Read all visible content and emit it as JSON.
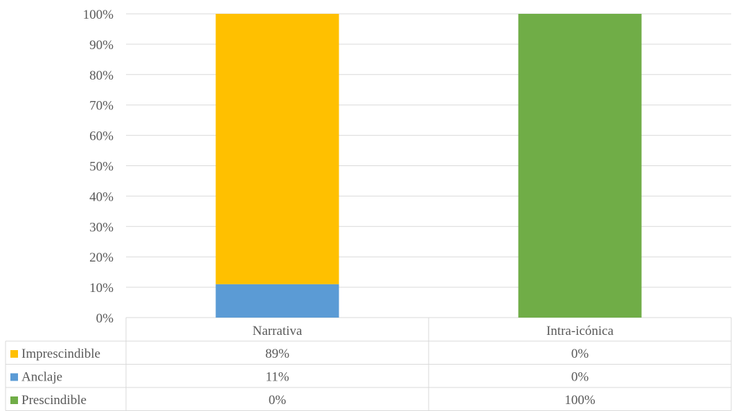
{
  "chart_data": {
    "type": "bar",
    "stacked": true,
    "percent": true,
    "title": "",
    "xlabel": "",
    "ylabel": "",
    "ylim": [
      0,
      100
    ],
    "yticks": [
      "0%",
      "10%",
      "20%",
      "30%",
      "40%",
      "50%",
      "60%",
      "70%",
      "80%",
      "90%",
      "100%"
    ],
    "categories": [
      "Narrativa",
      "Intra-icónica"
    ],
    "series": [
      {
        "name": "Imprescindible",
        "values": [
          89,
          0
        ],
        "labels": [
          "89%",
          "0%"
        ],
        "color": "#FFC000"
      },
      {
        "name": "Anclaje",
        "values": [
          11,
          0
        ],
        "labels": [
          "11%",
          "0%"
        ],
        "color": "#5B9BD5"
      },
      {
        "name": "Prescindible",
        "values": [
          0,
          100
        ],
        "labels": [
          "0%",
          "100%"
        ],
        "color": "#70AD47"
      }
    ],
    "stack_order": [
      "Prescindible",
      "Anclaje",
      "Imprescindible"
    ],
    "grid": true,
    "legend": "data-table"
  }
}
